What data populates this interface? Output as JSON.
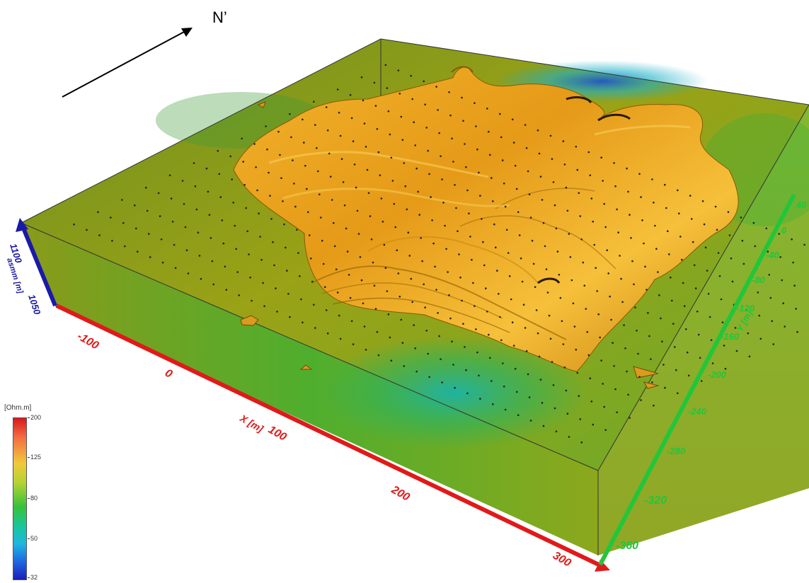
{
  "north_label": "N’",
  "colorbar": {
    "unit": "[Ohm.m]",
    "ticks": [
      "200",
      "125",
      "80",
      "50",
      "32"
    ]
  },
  "axes": {
    "x": {
      "title": "X [m]",
      "ticks": [
        "-100",
        "0",
        "100",
        "200",
        "300"
      ],
      "color": "#e01a1a"
    },
    "y": {
      "title": "Y [m]",
      "ticks": [
        "40",
        "0",
        "-40",
        "-80",
        "-120",
        "-160",
        "-200",
        "-240",
        "-280",
        "-320",
        "-360"
      ],
      "color": "#22c63a"
    },
    "z": {
      "title": "asmm [m]",
      "ticks": [
        "1100",
        "1050"
      ],
      "color": "#1a1aa8"
    }
  },
  "colors": {
    "body": "#e8a521",
    "model_green": "#5fb02c",
    "model_olive": "#9a9a18",
    "low_resistivity": "#1fb6b0"
  }
}
